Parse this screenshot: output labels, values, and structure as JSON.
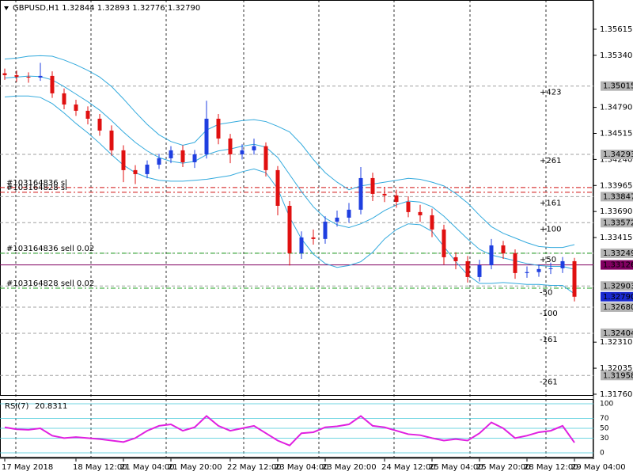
{
  "chart_data": [
    {
      "type": "candlestick",
      "title": "GBPUSD,H1  1.32844 1.32893 1.32776 1.32790",
      "categories": [
        "17 May 2018",
        null,
        null,
        null,
        null,
        null,
        "18 May 12:00",
        null,
        null,
        null,
        "21 May 04:00",
        null,
        null,
        null,
        "21 May 20:00",
        null,
        null,
        null,
        null,
        "22 May 12:00",
        null,
        null,
        null,
        "23 May 04:00",
        null,
        null,
        null,
        "23 May 20:00",
        null,
        null,
        null,
        null,
        "24 May 12:00",
        null,
        null,
        null,
        "25 May 04:00",
        null,
        null,
        null,
        "25 May 20:00",
        null,
        null,
        null,
        "28 May 12:00",
        null,
        null,
        null,
        "29 May 04:00"
      ],
      "open": [
        1.3515,
        1.3513,
        1.35113,
        1.35105,
        1.35122,
        1.34938,
        1.3482,
        1.34754,
        1.3467,
        1.34545,
        1.34336,
        1.34127,
        1.34085,
        1.34185,
        1.34252,
        1.34336,
        1.3421,
        1.34294,
        1.3467,
        1.34461,
        1.34294,
        1.34336,
        1.3438,
        1.34127,
        1.3375,
        1.33249,
        1.33416,
        1.334,
        1.33583,
        1.33625,
        1.33709,
        1.34043,
        1.33876,
        1.3386,
        1.33792,
        1.33684,
        1.3365,
        1.335,
        1.33207,
        1.33165,
        1.32998,
        1.33123,
        1.33332,
        1.33249,
        1.3304,
        1.3305,
        1.33082,
        1.3309,
        1.33165
      ],
      "high": [
        1.352,
        1.3518,
        1.3516,
        1.3526,
        1.3517,
        1.3499,
        1.3487,
        1.348,
        1.3472,
        1.346,
        1.3439,
        1.3418,
        1.3423,
        1.343,
        1.3438,
        1.3439,
        1.3434,
        1.3486,
        1.3472,
        1.3451,
        1.344,
        1.3446,
        1.3442,
        1.3417,
        1.338,
        1.3348,
        1.335,
        1.3364,
        1.337,
        1.3378,
        1.3416,
        1.341,
        1.3395,
        1.3392,
        1.3385,
        1.3376,
        1.3372,
        1.3355,
        1.3326,
        1.3322,
        1.3318,
        1.334,
        1.3338,
        1.3329,
        1.3311,
        1.3313,
        1.3315,
        1.3321,
        1.332
      ],
      "low": [
        1.3508,
        1.3506,
        1.3505,
        1.3507,
        1.3489,
        1.3477,
        1.347,
        1.3461,
        1.3449,
        1.3428,
        1.34,
        1.3398,
        1.3404,
        1.3414,
        1.342,
        1.3416,
        1.3415,
        1.3425,
        1.344,
        1.342,
        1.3424,
        1.3429,
        1.3406,
        1.3365,
        1.3312,
        1.3319,
        1.3334,
        1.3335,
        1.3353,
        1.3357,
        1.3366,
        1.338,
        1.3379,
        1.3373,
        1.3363,
        1.3358,
        1.3342,
        1.3313,
        1.3308,
        1.3294,
        1.3295,
        1.3308,
        1.3319,
        1.3298,
        1.3299,
        1.33,
        1.3303,
        1.3304,
        1.3274
      ],
      "close": [
        1.3513,
        1.35113,
        1.35105,
        1.35122,
        1.34938,
        1.3482,
        1.34754,
        1.3467,
        1.34545,
        1.34336,
        1.34127,
        1.34085,
        1.34185,
        1.34252,
        1.34336,
        1.3421,
        1.34294,
        1.3467,
        1.34461,
        1.34294,
        1.34336,
        1.3438,
        1.34127,
        1.3375,
        1.33249,
        1.33416,
        1.334,
        1.33583,
        1.33625,
        1.33709,
        1.34043,
        1.33876,
        1.3386,
        1.33792,
        1.33684,
        1.3365,
        1.335,
        1.33207,
        1.33165,
        1.32998,
        1.33123,
        1.33332,
        1.33249,
        1.3304,
        1.3305,
        1.33082,
        1.3309,
        1.33165,
        1.3279
      ],
      "bull_color": "#1f3fe0",
      "bear_color": "#e01010",
      "bands": {
        "color": "#33aadd",
        "upper": [
          1.353,
          1.3531,
          1.3533,
          1.35335,
          1.3533,
          1.3529,
          1.3524,
          1.3518,
          1.3511,
          1.3501,
          1.3488,
          1.3474,
          1.3461,
          1.345,
          1.3443,
          1.3439,
          1.3442,
          1.3455,
          1.3461,
          1.3463,
          1.3465,
          1.3466,
          1.3464,
          1.3459,
          1.3453,
          1.344,
          1.3424,
          1.341,
          1.34,
          1.3392,
          1.3396,
          1.3398,
          1.34,
          1.3402,
          1.3404,
          1.3403,
          1.34,
          1.3396,
          1.3388,
          1.3378,
          1.3365,
          1.3353,
          1.3346,
          1.3341,
          1.3336,
          1.3332,
          1.3331,
          1.3331,
          1.3334
        ],
        "middle": [
          1.351,
          1.3511,
          1.3512,
          1.35115,
          1.3508,
          1.3501,
          1.3493,
          1.3485,
          1.3476,
          1.3465,
          1.3453,
          1.3442,
          1.3433,
          1.3426,
          1.3422,
          1.342,
          1.3422,
          1.3429,
          1.3433,
          1.3435,
          1.3438,
          1.344,
          1.3437,
          1.3426,
          1.3408,
          1.339,
          1.3374,
          1.3362,
          1.3355,
          1.3352,
          1.3356,
          1.3362,
          1.337,
          1.3376,
          1.338,
          1.3379,
          1.3374,
          1.3364,
          1.3352,
          1.334,
          1.3329,
          1.3323,
          1.332,
          1.3317,
          1.3314,
          1.3312,
          1.3311,
          1.3311,
          1.3308
        ],
        "lower": [
          1.349,
          1.3491,
          1.3491,
          1.34895,
          1.3483,
          1.3473,
          1.3462,
          1.3452,
          1.3441,
          1.3429,
          1.3418,
          1.341,
          1.3405,
          1.3402,
          1.3401,
          1.3401,
          1.3402,
          1.3403,
          1.3405,
          1.3407,
          1.3411,
          1.3414,
          1.341,
          1.3393,
          1.3363,
          1.334,
          1.3324,
          1.3314,
          1.331,
          1.3312,
          1.3316,
          1.3326,
          1.334,
          1.335,
          1.3356,
          1.3355,
          1.3348,
          1.3332,
          1.3316,
          1.3302,
          1.3293,
          1.3293,
          1.3294,
          1.3293,
          1.3292,
          1.3292,
          1.3291,
          1.3291,
          1.3282
        ]
      },
      "ylim": [
        1.31743,
        1.35924
      ],
      "yticks": [
        1.35615,
        {
          "value": 1.3534,
          "label": "1.35340"
        },
        {
          "value": 1.3479,
          "label": "1.34790"
        },
        1.34515,
        {
          "value": 1.3424,
          "label": "1.34240"
        },
        1.33965,
        {
          "value": 1.3369,
          "label": "1.33690"
        },
        1.33415,
        {
          "value": 1.3231,
          "label": "1.32310"
        },
        1.32035,
        {
          "value": 1.3176,
          "label": "1.31760"
        }
      ],
      "levels": [
        {
          "value": 1.35015,
          "tag": "+423"
        },
        {
          "value": 1.34293,
          "tag": "+261"
        },
        {
          "value": 1.33847,
          "tag": "+161"
        },
        {
          "value": 1.33572,
          "tag": "+100"
        },
        {
          "value": 1.33249,
          "tag": "+50"
        },
        {
          "value": 1.32903,
          "tag": "-50"
        },
        {
          "value": 1.3268,
          "label": "1.32680",
          "tag": "-100"
        },
        {
          "value": 1.32404,
          "tag": "-161"
        },
        {
          "value": 1.31958,
          "tag": "-261"
        }
      ],
      "orders": [
        {
          "text": "#103164836 sl",
          "value": 1.33943,
          "color": "#d01010"
        },
        {
          "text": "#103164828 sl",
          "value": 1.33893,
          "color": "#d01010"
        },
        {
          "text": "#103164836 sell 0.02",
          "value": 1.33249,
          "color": "#20a020"
        },
        {
          "text": "#103164828 sell 0.02",
          "value": 1.3288,
          "color": "#20a020"
        }
      ],
      "price_line": {
        "value": 1.33126,
        "color": "#800060"
      },
      "current_price": {
        "value": 1.3279,
        "label": "1.32790",
        "color": "#1a2bd0"
      }
    },
    {
      "type": "line",
      "title": "RSI(7)",
      "current": 20.8311,
      "values": [
        52,
        48,
        47,
        50,
        35,
        30,
        32,
        30,
        28,
        25,
        22,
        30,
        45,
        55,
        58,
        45,
        52,
        75,
        55,
        45,
        50,
        55,
        40,
        25,
        15,
        40,
        42,
        52,
        54,
        58,
        75,
        55,
        52,
        45,
        38,
        36,
        30,
        25,
        28,
        25,
        40,
        62,
        50,
        30,
        35,
        42,
        45,
        55,
        20.8311
      ],
      "color": "#e020e0",
      "ylim": [
        0,
        100
      ],
      "yticks": [
        0,
        30,
        50,
        70,
        100
      ],
      "grid_color": "#40c8d8"
    }
  ]
}
